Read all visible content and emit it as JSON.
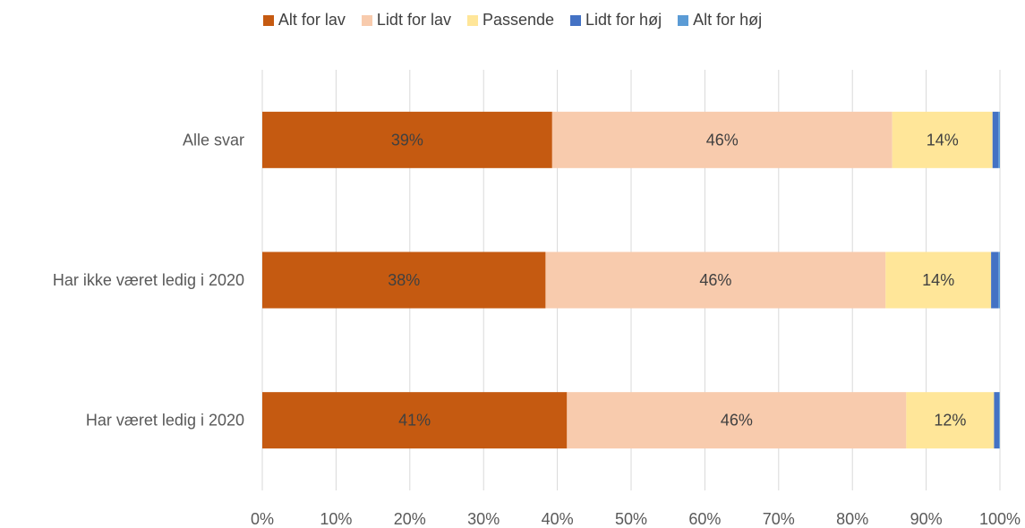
{
  "chart_data": {
    "type": "bar",
    "orientation": "horizontal",
    "stacked": "percent",
    "categories": [
      "Alle svar",
      "Har ikke været ledig i 2020",
      "Har været ledig i 2020"
    ],
    "series": [
      {
        "name": "Alt for lav",
        "color": "#C55A11",
        "values": [
          39.3,
          38.4,
          41.3
        ],
        "labels": [
          "39%",
          "38%",
          "41%"
        ]
      },
      {
        "name": "Lidt for lav",
        "color": "#F8CBAD",
        "values": [
          46.1,
          46.1,
          46.0
        ],
        "labels": [
          "46%",
          "46%",
          "46%"
        ]
      },
      {
        "name": "Passende",
        "color": "#FFE699",
        "values": [
          13.6,
          14.3,
          11.9
        ],
        "labels": [
          "14%",
          "14%",
          "12%"
        ]
      },
      {
        "name": "Lidt for høj",
        "color": "#4472C4",
        "values": [
          0.8,
          1.0,
          0.7
        ],
        "labels": [
          "",
          "",
          ""
        ]
      },
      {
        "name": "Alt for høj",
        "color": "#5B9BD5",
        "values": [
          0.2,
          0.2,
          0.1
        ],
        "labels": [
          "",
          "",
          ""
        ]
      }
    ],
    "x_ticks": [
      "0%",
      "10%",
      "20%",
      "30%",
      "40%",
      "50%",
      "60%",
      "70%",
      "80%",
      "90%",
      "100%"
    ],
    "xlim": [
      0,
      100
    ],
    "grid": true,
    "legend_position": "top"
  }
}
